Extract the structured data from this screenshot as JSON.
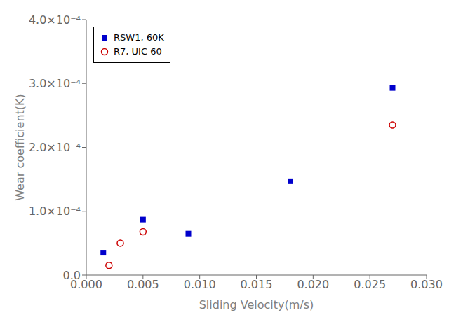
{
  "chart_data": {
    "type": "scatter",
    "xlabel": "Sliding Velocity(m/s)",
    "ylabel": "Wear coefficient(K)",
    "series": [
      {
        "name": "RSW1, 60K",
        "color": "#0000cc",
        "marker": "square",
        "x": [
          0.0015,
          0.005,
          0.009,
          0.018,
          0.027
        ],
        "values": [
          3.5e-05,
          8.7e-05,
          6.5e-05,
          0.000147,
          0.000293
        ]
      },
      {
        "name": "R7, UIC 60",
        "color": "#cc0000",
        "marker": "open_circle",
        "x": [
          0.002,
          0.003,
          0.005,
          0.027
        ],
        "values": [
          1.5e-05,
          5e-05,
          6.8e-05,
          0.000235
        ]
      }
    ],
    "xlim": [
      0.0,
      0.03
    ],
    "ylim": [
      0.0,
      0.0004
    ],
    "xticks": [
      {
        "value": 0.0,
        "label": "0.000"
      },
      0.005,
      {
        "value": 0.01,
        "label": "0.010"
      },
      0.015,
      {
        "value": 0.02,
        "label": "0.020"
      },
      0.025,
      {
        "value": 0.03,
        "label": "0.030"
      }
    ],
    "yticks": [
      {
        "value": 0.0,
        "label": "0.0"
      },
      {
        "value": 0.0001,
        "label": "1.0×10⁻⁴"
      },
      {
        "value": 0.0002,
        "label": "2.0×10⁻⁴"
      },
      {
        "value": 0.0003,
        "label": "3.0×10⁻⁴"
      },
      {
        "value": 0.0004,
        "label": "4.0×10⁻⁴"
      }
    ],
    "legend": "upper left",
    "grid": false
  }
}
